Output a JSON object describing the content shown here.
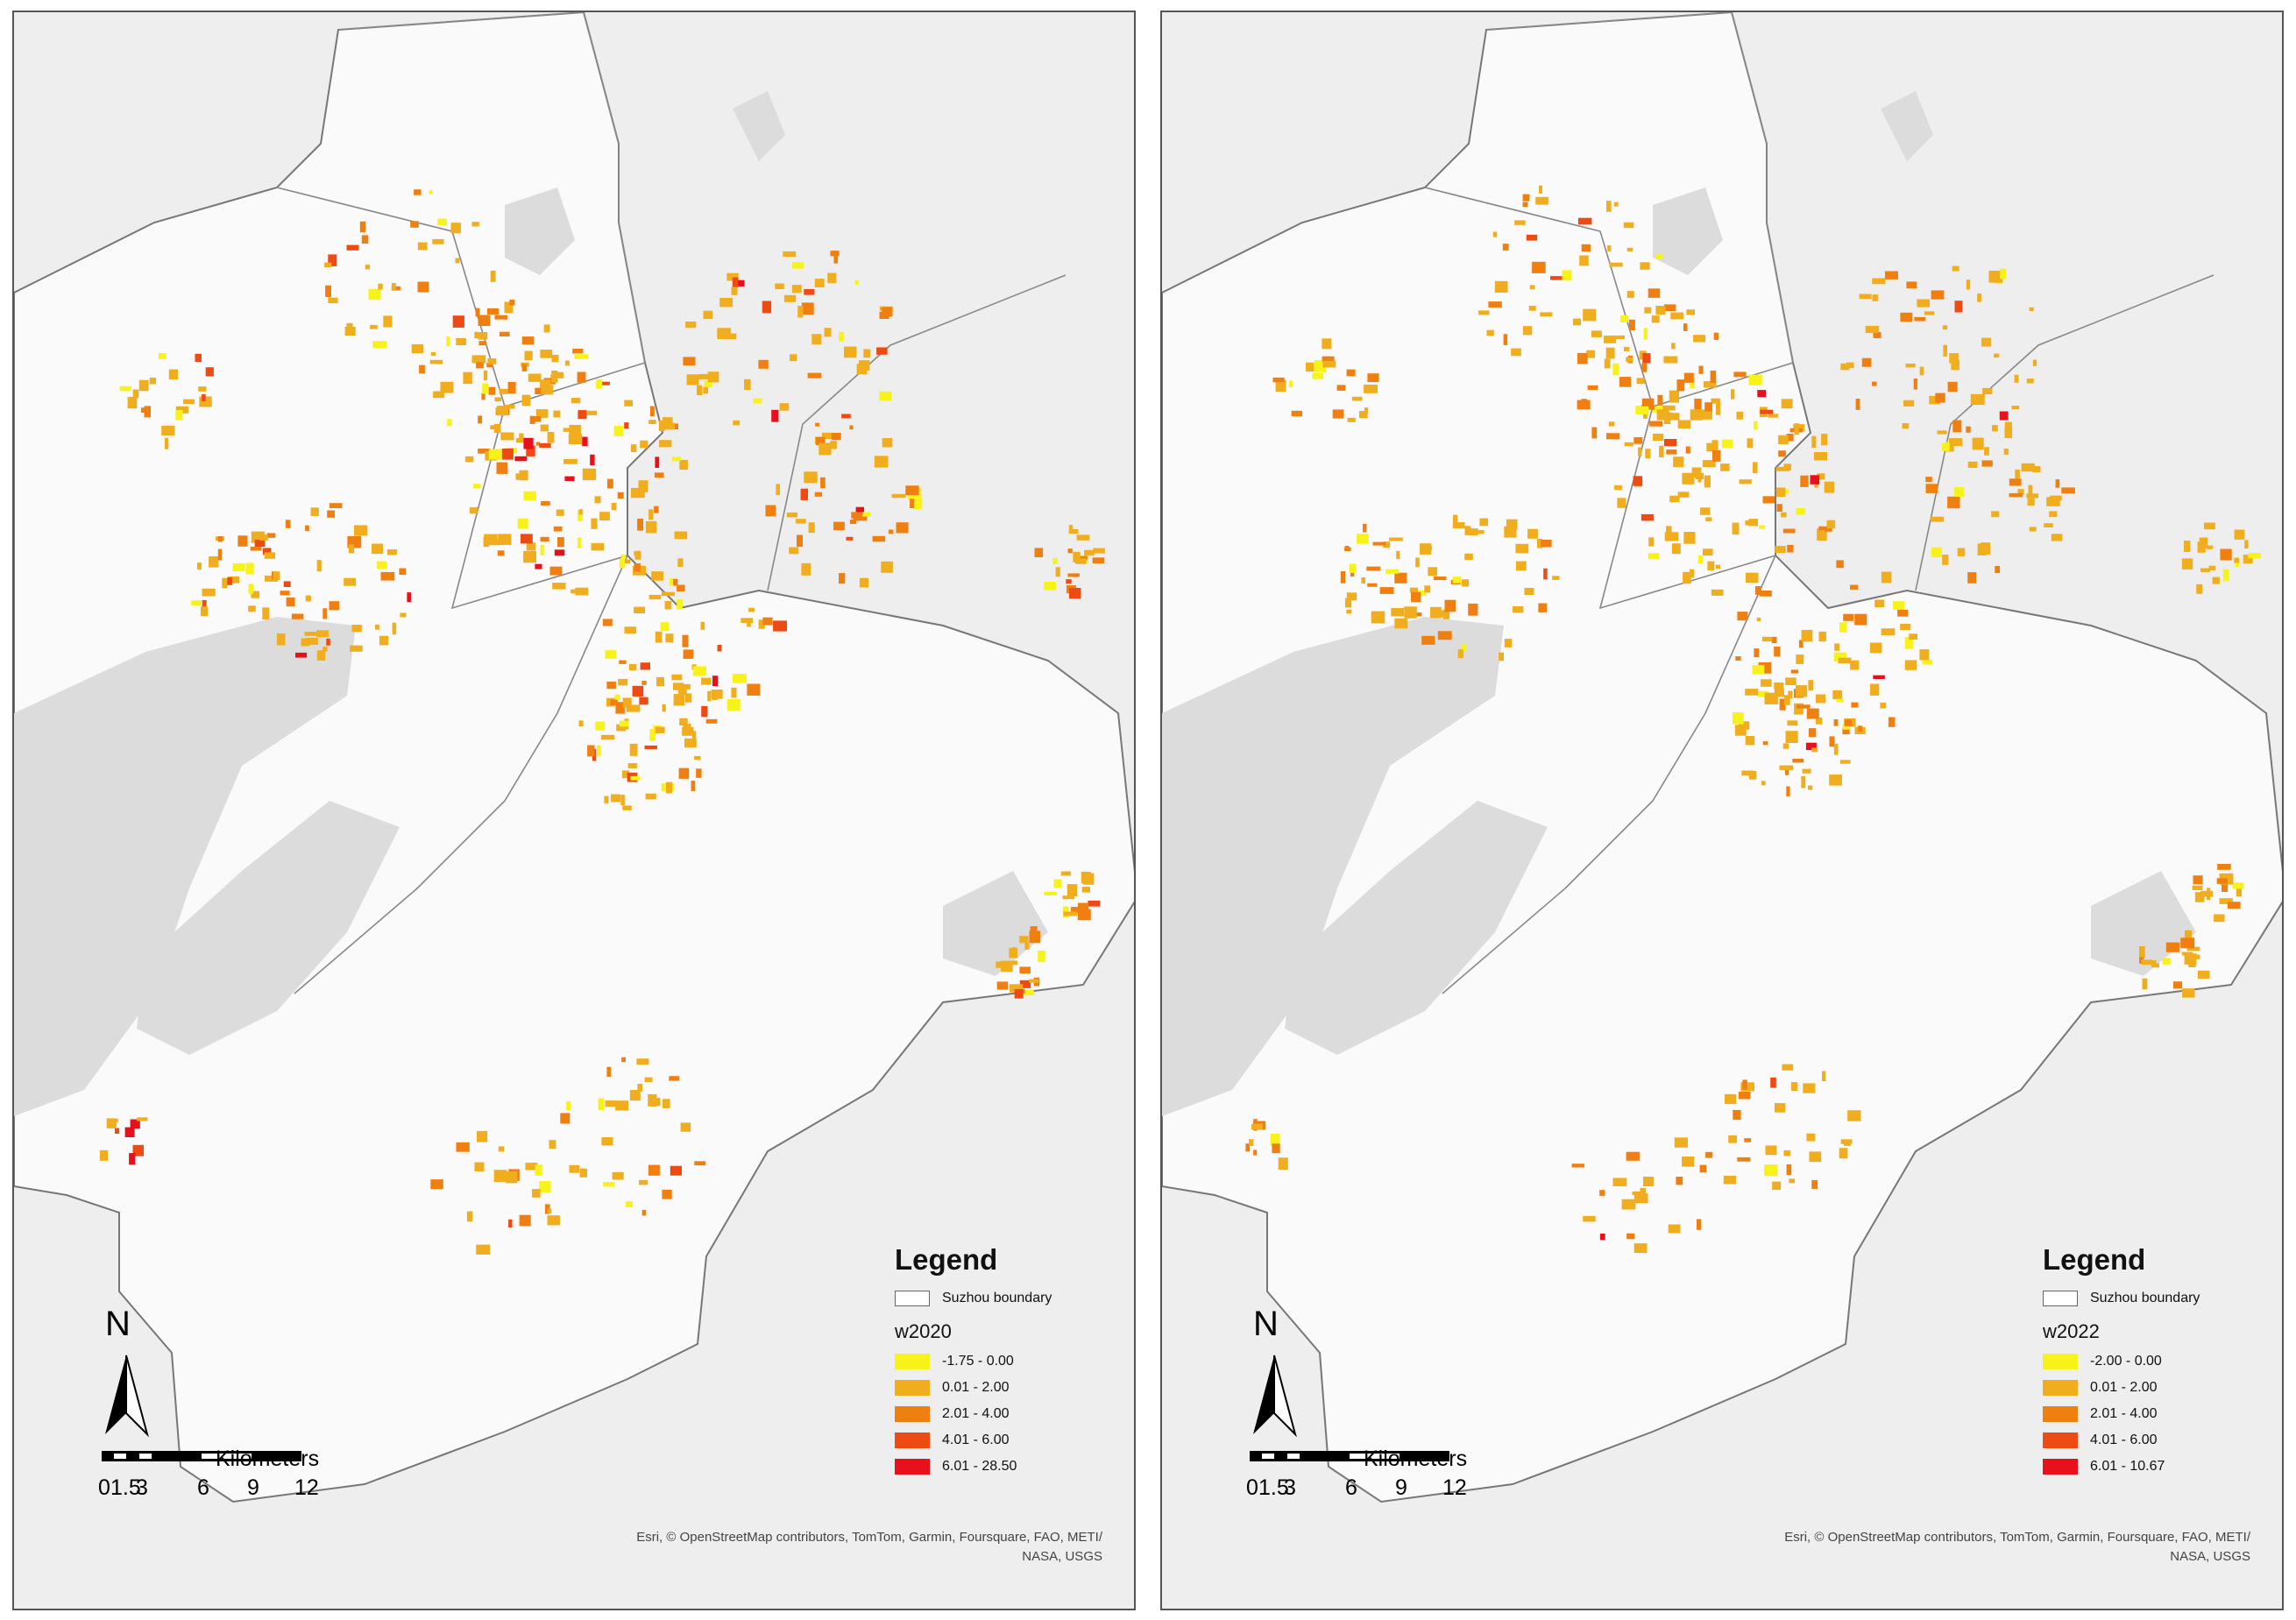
{
  "maps": [
    {
      "legend_title": "Legend",
      "boundary_label": "Suzhou boundary",
      "field": "w2020",
      "classes": [
        {
          "label": "-1.75 - 0.00",
          "color": "#f7f21a"
        },
        {
          "label": "0.01 - 2.00",
          "color": "#f0ad1d"
        },
        {
          "label": "2.01 - 4.00",
          "color": "#f07f12"
        },
        {
          "label": "4.01 - 6.00",
          "color": "#ee4a14"
        },
        {
          "label": "6.01 - 28.50",
          "color": "#e8101b"
        }
      ],
      "north": "N",
      "scale_unit": "Kilometers",
      "scale_ticks": [
        "0",
        "1.5",
        "3",
        "6",
        "9",
        "12"
      ],
      "attribution_line1": "Esri, © OpenStreetMap contributors, TomTom, Garmin, Foursquare, FAO, METI/",
      "attribution_line2": "NASA, USGS"
    },
    {
      "legend_title": "Legend",
      "boundary_label": "Suzhou boundary",
      "field": "w2022",
      "classes": [
        {
          "label": "-2.00 - 0.00",
          "color": "#f7f21a"
        },
        {
          "label": "0.01 - 2.00",
          "color": "#f0ad1d"
        },
        {
          "label": "2.01 - 4.00",
          "color": "#f07f12"
        },
        {
          "label": "4.01 - 6.00",
          "color": "#ee4a14"
        },
        {
          "label": "6.01 - 10.67",
          "color": "#e8101b"
        }
      ],
      "north": "N",
      "scale_unit": "Kilometers",
      "scale_ticks": [
        "0",
        "1.5",
        "3",
        "6",
        "9",
        "12"
      ],
      "attribution_line1": "Esri, © OpenStreetMap contributors, TomTom, Garmin, Foursquare, FAO, METI/",
      "attribution_line2": "NASA, USGS"
    }
  ]
}
